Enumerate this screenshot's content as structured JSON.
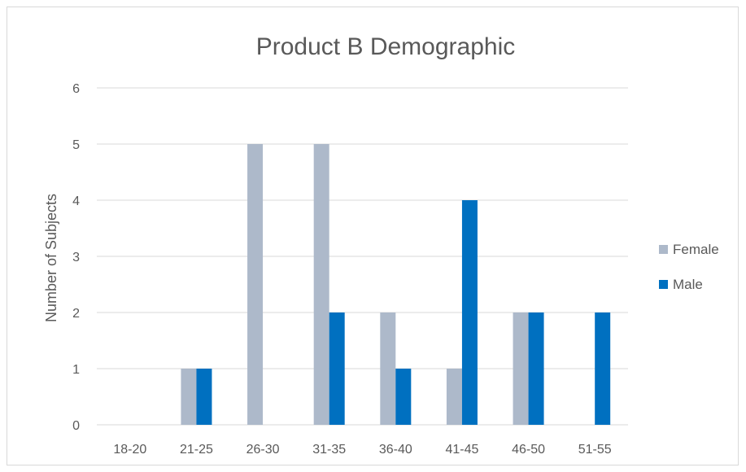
{
  "chart_data": {
    "type": "bar",
    "title": "Product B Demographic",
    "xlabel": "",
    "ylabel": "Number of Subjects",
    "categories": [
      "18-20",
      "21-25",
      "26-30",
      "31-35",
      "36-40",
      "41-45",
      "46-50",
      "51-55"
    ],
    "series": [
      {
        "name": "Female",
        "color": "#adb9ca",
        "values": [
          0,
          1,
          5,
          5,
          2,
          1,
          2,
          0
        ]
      },
      {
        "name": "Male",
        "color": "#0070c0",
        "values": [
          0,
          1,
          0,
          2,
          1,
          4,
          2,
          2
        ]
      }
    ],
    "ylim": [
      0,
      6
    ],
    "yticks": [
      "0",
      "1",
      "2",
      "3",
      "4",
      "5",
      "6"
    ],
    "grid": true,
    "legend_position": "right",
    "colors": {
      "gridline": "#d9d9d9",
      "text": "#595959",
      "frame": "#d9d9d9"
    }
  }
}
